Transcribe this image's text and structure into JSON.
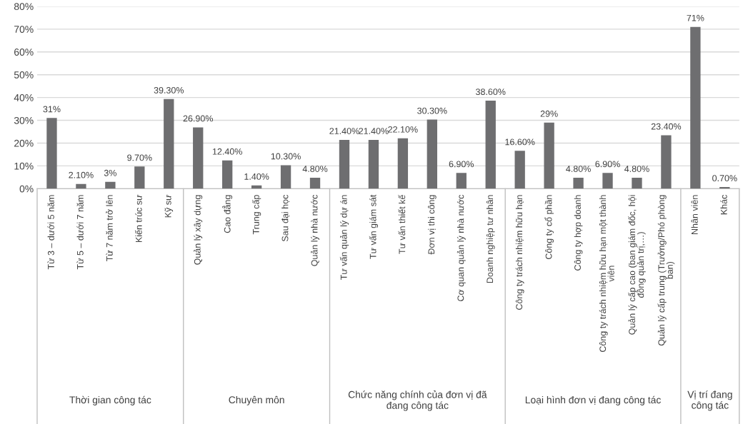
{
  "chart_data": {
    "type": "bar",
    "categories": [
      "Từ 3 – dưới 5 năm",
      "Từ 5 – dưới 7 năm",
      "Từ 7 năm trở lên",
      "Kiến trúc sư",
      "Kỹ sư",
      "Quản lý xây dựng",
      "Cao đẳng",
      "Trung cấp",
      "Sau đại học",
      "Quản lý nhà nước",
      "Tư vấn quản lý dự án",
      "Tư vấn giám sát",
      "Tư vấn thiết kế",
      "Đơn vị thi công",
      "Cơ quan quản lý nhà nước",
      "Doanh nghiệp tư nhân",
      "Công ty trách nhiệm hữu hạn",
      "Công ty cổ phần",
      "Công ty hợp doanh",
      "Công ty trách nhiệm hữu hạn một thành\nviên",
      "Quản lý cấp cao (ban giám đốc, hội\nđồng quản trị,…)",
      "Quản lý cấp trung (Trưởng/Phó phòng\nban)",
      "Nhân viên",
      "Khác"
    ],
    "values": [
      31,
      2.1,
      3,
      9.7,
      39.3,
      26.9,
      12.4,
      1.4,
      10.3,
      4.8,
      21.4,
      21.4,
      22.1,
      30.3,
      6.9,
      38.6,
      16.6,
      29,
      4.8,
      6.9,
      4.8,
      23.4,
      71,
      0.7
    ],
    "value_labels": [
      "31%",
      "2.10%",
      "3%",
      "9.70%",
      "39.30%",
      "26.90%",
      "12.40%",
      "1.40%",
      "10.30%",
      "4.80%",
      "21.40%",
      "21.40%",
      "22.10%",
      "30.30%",
      "6.90%",
      "38.60%",
      "16.60%",
      "29%",
      "4.80%",
      "6.90%",
      "4.80%",
      "23.40%",
      "71%",
      "0.70%"
    ],
    "color": "#6e6e70",
    "ylim": [
      0,
      80
    ],
    "yticks": [
      {
        "value": 0,
        "label": "0%"
      },
      {
        "value": 10,
        "label": "10%"
      },
      {
        "value": 20,
        "label": "20%"
      },
      {
        "value": 30,
        "label": "30%"
      },
      {
        "value": 40,
        "label": "40%"
      },
      {
        "value": 50,
        "label": "50%"
      },
      {
        "value": 60,
        "label": "60%"
      },
      {
        "value": 70,
        "label": "70%"
      },
      {
        "value": 80,
        "label": "80%"
      }
    ],
    "grid": "y",
    "annotations": [
      "Thời gian công tác",
      "Chuyên môn",
      "Chức năng chính của đơn vị đã\nđang công tác",
      "Loại hình đơn vị đang công tác",
      "Vị trí đang\ncông tác"
    ]
  }
}
